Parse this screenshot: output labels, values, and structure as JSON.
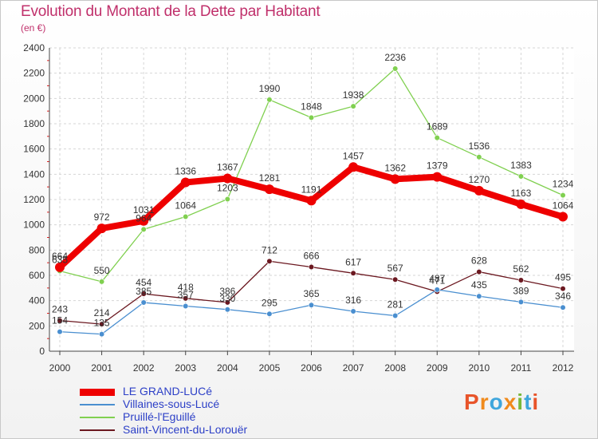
{
  "title": "Evolution du Montant de la Dette par Habitant",
  "subtitle": "(en €)",
  "brand": "Proxiti",
  "chart_data": {
    "type": "line",
    "x": [
      2000,
      2001,
      2002,
      2003,
      2004,
      2005,
      2006,
      2007,
      2008,
      2009,
      2010,
      2011,
      2012
    ],
    "ylim": [
      0,
      2400
    ],
    "yticks": [
      0,
      200,
      400,
      600,
      800,
      1000,
      1200,
      1400,
      1600,
      1800,
      2000,
      2200,
      2400
    ],
    "grid": true,
    "legend": "bottom-left",
    "series": [
      {
        "name": "Saint-Vincent-du-Lorouër",
        "color": "#6b1820",
        "values": [
          243,
          214,
          454,
          418,
          386,
          712,
          666,
          617,
          567,
          471,
          628,
          562,
          495
        ]
      },
      {
        "name": "Villaines-sous-Lucé",
        "color": "#4a8fd0",
        "values": [
          154,
          135,
          385,
          357,
          330,
          295,
          365,
          316,
          281,
          487,
          435,
          389,
          346
        ]
      },
      {
        "name": "Pruillé-l'Eguillé",
        "color": "#80d050",
        "values": [
          635,
          550,
          964,
          1064,
          1203,
          1990,
          1848,
          1938,
          2236,
          1689,
          1536,
          1383,
          1234
        ]
      },
      {
        "name": "LE GRAND-LUCé",
        "color": "#ee0000",
        "values": [
          664,
          972,
          1031,
          1336,
          1367,
          1281,
          1191,
          1457,
          1362,
          1379,
          1270,
          1163,
          1064
        ]
      }
    ]
  }
}
